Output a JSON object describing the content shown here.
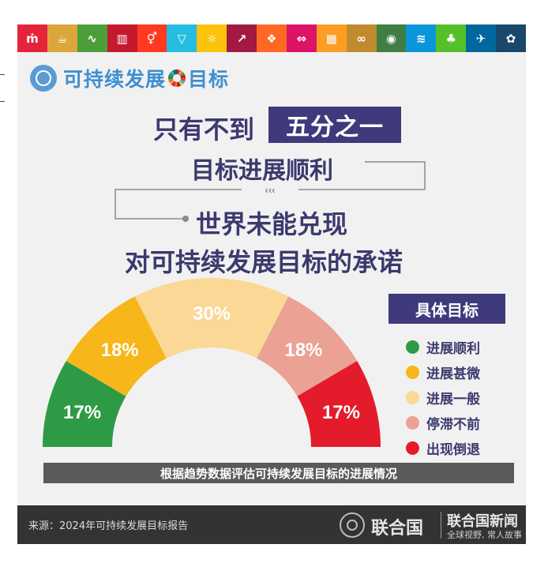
{
  "header": {
    "sdg_icons": [
      {
        "icon": "no-poverty-icon",
        "color": "#e5243b",
        "glyph": "ṁ"
      },
      {
        "icon": "zero-hunger-icon",
        "color": "#dda63a",
        "glyph": "☕"
      },
      {
        "icon": "good-health-icon",
        "color": "#4c9f38",
        "glyph": "∿"
      },
      {
        "icon": "quality-education-icon",
        "color": "#c5192d",
        "glyph": "▥"
      },
      {
        "icon": "gender-equality-icon",
        "color": "#ff3a21",
        "glyph": "⚥"
      },
      {
        "icon": "clean-water-icon",
        "color": "#26bde2",
        "glyph": "▽"
      },
      {
        "icon": "clean-energy-icon",
        "color": "#fcc30b",
        "glyph": "☼"
      },
      {
        "icon": "decent-work-icon",
        "color": "#a21942",
        "glyph": "↗"
      },
      {
        "icon": "industry-innovation-icon",
        "color": "#fd6925",
        "glyph": "❖"
      },
      {
        "icon": "reduced-inequalities-icon",
        "color": "#dd1367",
        "glyph": "⇔"
      },
      {
        "icon": "sustainable-cities-icon",
        "color": "#fd9d24",
        "glyph": "▦"
      },
      {
        "icon": "responsible-consumption-icon",
        "color": "#bf8b2e",
        "glyph": "∞"
      },
      {
        "icon": "climate-action-icon",
        "color": "#3f7e44",
        "glyph": "◉"
      },
      {
        "icon": "life-below-water-icon",
        "color": "#0a97d9",
        "glyph": "≋"
      },
      {
        "icon": "life-on-land-icon",
        "color": "#56c02b",
        "glyph": "♣"
      },
      {
        "icon": "peace-justice-icon",
        "color": "#00689d",
        "glyph": "✈"
      },
      {
        "icon": "partnerships-icon",
        "color": "#19486a",
        "glyph": "✿"
      }
    ],
    "logo_text_1": "可持续发展",
    "logo_text_2": "目标"
  },
  "headline": {
    "line1_prefix": "只有不到",
    "line1_highlight": "五分之一",
    "line2": "目标进展顺利",
    "line3": "世界未能兑现",
    "line4": "对可持续发展目标的承诺"
  },
  "legend": {
    "title": "具体目标"
  },
  "chart_data": {
    "type": "pie",
    "subtype": "half-donut",
    "categories": [
      "进展顺利",
      "进展甚微",
      "进展一般",
      "停滞不前",
      "出现倒退"
    ],
    "values": [
      17,
      18,
      30,
      18,
      17
    ],
    "labels": [
      "17%",
      "18%",
      "30%",
      "18%",
      "17%"
    ],
    "colors": [
      "#2e9a46",
      "#f7b619",
      "#fbd896",
      "#eba193",
      "#e31b2b"
    ],
    "unit": "%"
  },
  "caption": "根据趋势数据评估可持续发展目标的进展情况",
  "footer": {
    "source": "来源：2024年可持续发展目标报告",
    "org": "联合国",
    "news": "联合国新闻",
    "tagline": "全球视野, 常人故事"
  }
}
